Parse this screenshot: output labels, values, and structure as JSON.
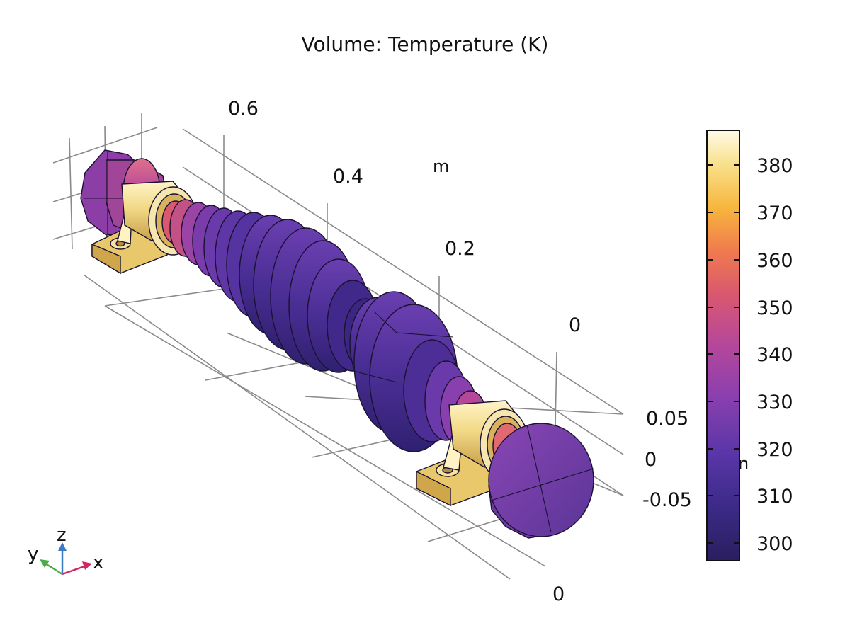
{
  "title": "Volume: Temperature (K)",
  "axes": {
    "x_ticks": [
      "0.6",
      "0.4",
      "0.2",
      "0"
    ],
    "x_unit": "m",
    "y_ticks": [
      "0.05",
      "0",
      "-0.05"
    ],
    "y_unit_partial": "n",
    "z_ticks": [
      "0"
    ]
  },
  "triad": {
    "x_label": "x",
    "y_label": "y",
    "z_label": "z"
  },
  "colorbar": {
    "ticks": [
      "380",
      "370",
      "360",
      "350",
      "340",
      "330",
      "320",
      "310",
      "300"
    ],
    "min": 296,
    "max": 387,
    "colormap": [
      "#2b1e5e",
      "#3b2a86",
      "#5a36a8",
      "#8a3fae",
      "#b5479b",
      "#d9586f",
      "#f07b4e",
      "#f7b63d",
      "#f8e08a",
      "#fffbe8"
    ]
  }
}
